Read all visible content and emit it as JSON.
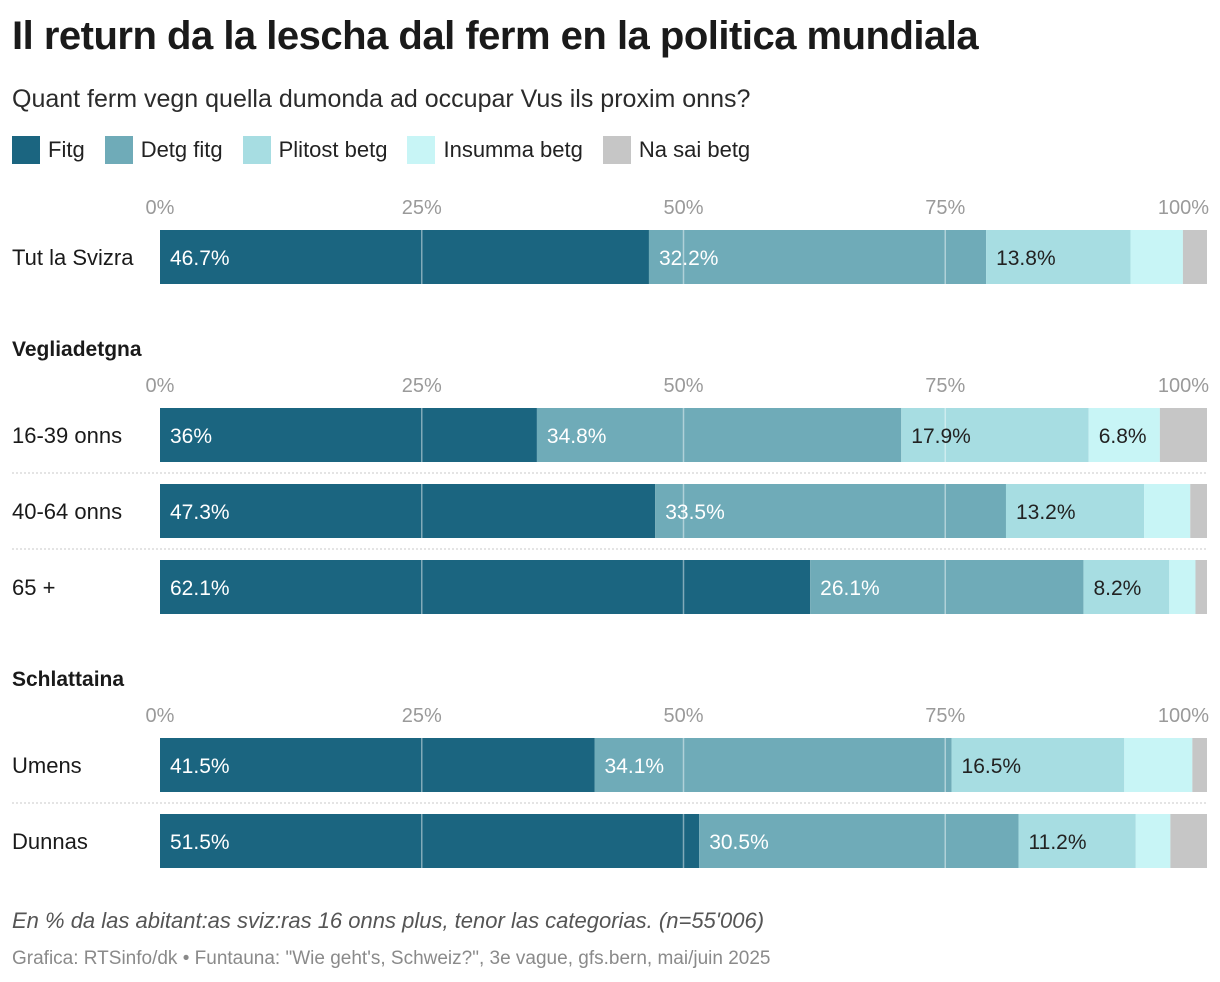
{
  "header": {
    "title": "Il return da la lescha dal ferm en la politica mundiala",
    "subtitle": "Quant ferm vegn quella dumonda ad occupar Vus ils proxim onns?"
  },
  "footer": {
    "note": "En % da las abitant:as sviz:ras 16 onns plus, tenor las categorias. (n=55'006)",
    "source": "Grafica: RTSinfo/dk • Funtauna: \"Wie geht's, Schweiz?\", 3e vague, gfs.bern, mai/juin 2025"
  },
  "chart_data": {
    "type": "bar",
    "orientation": "horizontal-stacked",
    "xlim": [
      0,
      100
    ],
    "ticks": [
      "0%",
      "25%",
      "50%",
      "75%",
      "100%"
    ],
    "legend_position": "top",
    "series": [
      {
        "name": "Fitg",
        "color": "#1b6580",
        "label_color": "#ffffff"
      },
      {
        "name": "Detg fitg",
        "color": "#6fabb8",
        "label_color": "#ffffff"
      },
      {
        "name": "Plitost betg",
        "color": "#a7dde2",
        "label_color": "#222222"
      },
      {
        "name": "Insumma betg",
        "color": "#c8f5f6",
        "label_color": "#222222"
      },
      {
        "name": "Na sai betg",
        "color": "#c6c6c6",
        "label_color": "#222222"
      }
    ],
    "groups": [
      {
        "title": "",
        "rows": [
          {
            "label": "Tut la Svizra",
            "values": [
              46.7,
              32.2,
              13.8,
              5.0,
              2.3
            ],
            "labels": [
              "46.7%",
              "32.2%",
              "13.8%",
              "",
              ""
            ]
          }
        ]
      },
      {
        "title": "Vegliadetgna",
        "rows": [
          {
            "label": "16-39 onns",
            "values": [
              36,
              34.8,
              17.9,
              6.8,
              4.5
            ],
            "labels": [
              "36%",
              "34.8%",
              "17.9%",
              "6.8%",
              ""
            ]
          },
          {
            "label": "40-64 onns",
            "values": [
              47.3,
              33.5,
              13.2,
              4.4,
              1.6
            ],
            "labels": [
              "47.3%",
              "33.5%",
              "13.2%",
              "",
              ""
            ]
          },
          {
            "label": "65 +",
            "values": [
              62.1,
              26.1,
              8.2,
              2.5,
              1.1
            ],
            "labels": [
              "62.1%",
              "26.1%",
              "8.2%",
              "",
              ""
            ]
          }
        ]
      },
      {
        "title": "Schlattaina",
        "rows": [
          {
            "label": "Umens",
            "values": [
              41.5,
              34.1,
              16.5,
              6.5,
              1.4
            ],
            "labels": [
              "41.5%",
              "34.1%",
              "16.5%",
              "",
              ""
            ]
          },
          {
            "label": "Dunnas",
            "values": [
              51.5,
              30.5,
              11.2,
              3.3,
              3.5
            ],
            "labels": [
              "51.5%",
              "30.5%",
              "11.2%",
              "",
              ""
            ]
          }
        ]
      }
    ]
  }
}
